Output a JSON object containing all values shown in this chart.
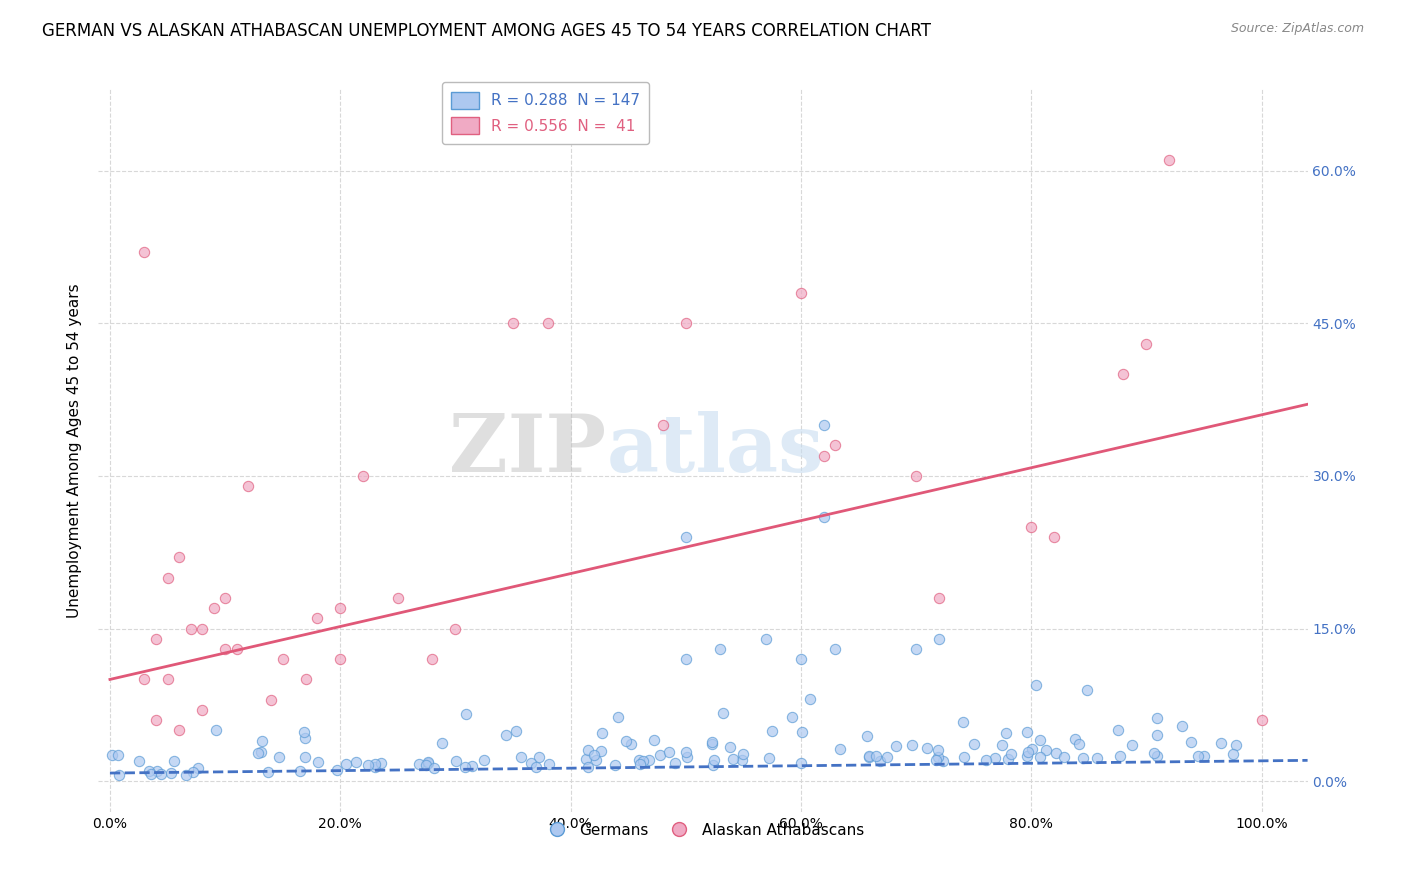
{
  "title": "GERMAN VS ALASKAN ATHABASCAN UNEMPLOYMENT AMONG AGES 45 TO 54 YEARS CORRELATION CHART",
  "source": "Source: ZipAtlas.com",
  "ylabel": "Unemployment Among Ages 45 to 54 years",
  "ytick_labels": [
    "0.0%",
    "15.0%",
    "30.0%",
    "45.0%",
    "60.0%"
  ],
  "ytick_values": [
    0.0,
    0.15,
    0.3,
    0.45,
    0.6
  ],
  "xtick_values": [
    0.0,
    0.2,
    0.4,
    0.6,
    0.8,
    1.0
  ],
  "xtick_labels": [
    "0.0%",
    "20.0%",
    "40.0%",
    "60.0%",
    "80.0%",
    "100.0%"
  ],
  "xlim": [
    -0.01,
    1.04
  ],
  "ylim": [
    -0.03,
    0.68
  ],
  "german_R": 0.288,
  "german_N": 147,
  "athabascan_R": 0.556,
  "athabascan_N": 41,
  "german_color": "#adc8f0",
  "athabascan_color": "#f0aac4",
  "german_edge_color": "#5b9bd5",
  "athabascan_edge_color": "#e06080",
  "german_line_color": "#4472c4",
  "athabascan_line_color": "#e05878",
  "watermark_color": "#c8ddf0",
  "background_color": "#ffffff",
  "grid_color": "#d8d8d8",
  "legend_label_german": "Germans",
  "legend_label_athabascan": "Alaskan Athabascans",
  "title_fontsize": 12,
  "axis_label_fontsize": 11,
  "tick_fontsize": 10,
  "legend_fontsize": 11,
  "right_tick_color": "#4472c4"
}
